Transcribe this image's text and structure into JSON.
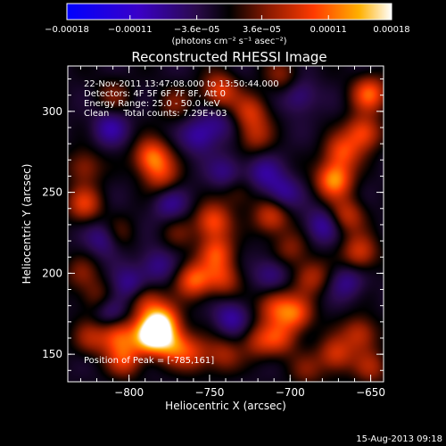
{
  "chart_data": {
    "type": "heatmap",
    "title": "Reconstructed RHESSI Image",
    "xlabel": "Heliocentric X (arcsec)",
    "ylabel": "Heliocentric Y (arcsec)",
    "xlim": [
      -838,
      -642
    ],
    "ylim": [
      133,
      328
    ],
    "x_ticks": [
      -800,
      -750,
      -700,
      -650
    ],
    "x_tick_labels": [
      "−800",
      "−750",
      "−700",
      "−650"
    ],
    "y_ticks": [
      150,
      200,
      250,
      300
    ],
    "y_tick_labels": [
      "150",
      "200",
      "250",
      "300"
    ],
    "colorbar": {
      "min": -0.00018,
      "max": 0.00018,
      "ticks": [
        -0.00018,
        -0.00011,
        -3.6e-05,
        3.6e-05,
        0.00011,
        0.00018
      ],
      "tick_labels": [
        "−0.00018",
        "−0.00011",
        "−3.6e−05",
        "3.6e−05",
        "0.00011",
        "0.00018"
      ],
      "unit_label": "(photons cm⁻² s⁻¹ asec⁻²)"
    },
    "annotations": [
      "22-Nov-2011 13:47:08.000 to 13:50:44.000",
      "Detectors: 4F 5F 6F 7F 8F, Att 0",
      "Energy Range: 25.0 - 50.0 keV",
      "Clean     Total counts: 7.29E+03"
    ],
    "peak_label": "Position of Peak = [-785,161]",
    "peak_position": [
      -785,
      161
    ],
    "sources": [
      {
        "x": -787,
        "y": 161,
        "v": 1.0
      },
      {
        "x": -780,
        "y": 170,
        "v": 0.9
      },
      {
        "x": -773,
        "y": 156,
        "v": 0.6
      },
      {
        "x": -790,
        "y": 183,
        "v": 0.45
      },
      {
        "x": -807,
        "y": 162,
        "v": 0.6
      },
      {
        "x": -803,
        "y": 147,
        "v": 0.5
      },
      {
        "x": -824,
        "y": 160,
        "v": 0.35
      },
      {
        "x": -760,
        "y": 196,
        "v": 0.65
      },
      {
        "x": -742,
        "y": 197,
        "v": 0.45
      },
      {
        "x": -746,
        "y": 213,
        "v": 0.55
      },
      {
        "x": -748,
        "y": 232,
        "v": 0.6
      },
      {
        "x": -786,
        "y": 272,
        "v": 0.7
      },
      {
        "x": -780,
        "y": 260,
        "v": 0.4
      },
      {
        "x": -828,
        "y": 243,
        "v": 0.5
      },
      {
        "x": -828,
        "y": 266,
        "v": 0.35
      },
      {
        "x": -808,
        "y": 225,
        "v": 0.3
      },
      {
        "x": -744,
        "y": 313,
        "v": 0.55
      },
      {
        "x": -725,
        "y": 300,
        "v": 0.45
      },
      {
        "x": -722,
        "y": 285,
        "v": 0.35
      },
      {
        "x": -712,
        "y": 235,
        "v": 0.5
      },
      {
        "x": -700,
        "y": 215,
        "v": 0.3
      },
      {
        "x": -697,
        "y": 175,
        "v": 0.6
      },
      {
        "x": -710,
        "y": 180,
        "v": 0.5
      },
      {
        "x": -707,
        "y": 160,
        "v": 0.45
      },
      {
        "x": -720,
        "y": 158,
        "v": 0.35
      },
      {
        "x": -687,
        "y": 198,
        "v": 0.4
      },
      {
        "x": -673,
        "y": 258,
        "v": 0.8
      },
      {
        "x": -668,
        "y": 275,
        "v": 0.55
      },
      {
        "x": -655,
        "y": 287,
        "v": 0.6
      },
      {
        "x": -651,
        "y": 311,
        "v": 0.65
      },
      {
        "x": -665,
        "y": 236,
        "v": 0.45
      },
      {
        "x": -657,
        "y": 213,
        "v": 0.5
      },
      {
        "x": -672,
        "y": 150,
        "v": 0.5
      },
      {
        "x": -657,
        "y": 163,
        "v": 0.45
      },
      {
        "x": -650,
        "y": 142,
        "v": 0.35
      },
      {
        "x": -760,
        "y": 150,
        "v": 0.4
      },
      {
        "x": -742,
        "y": 150,
        "v": 0.35
      },
      {
        "x": -810,
        "y": 310,
        "v": 0.25
      },
      {
        "x": -772,
        "y": 305,
        "v": 0.25
      },
      {
        "x": -705,
        "y": 322,
        "v": 0.3
      },
      {
        "x": -830,
        "y": 200,
        "v": 0.25
      },
      {
        "x": -820,
        "y": 185,
        "v": 0.3
      },
      {
        "x": -733,
        "y": 250,
        "v": 0.25
      },
      {
        "x": -690,
        "y": 140,
        "v": 0.25
      },
      {
        "x": -770,
        "y": 225,
        "v": 0.2
      },
      {
        "x": -812,
        "y": 290,
        "v": -0.35
      },
      {
        "x": -815,
        "y": 222,
        "v": -0.4
      },
      {
        "x": -800,
        "y": 193,
        "v": -0.35
      },
      {
        "x": -812,
        "y": 177,
        "v": -0.35
      },
      {
        "x": -775,
        "y": 243,
        "v": -0.3
      },
      {
        "x": -757,
        "y": 285,
        "v": -0.35
      },
      {
        "x": -740,
        "y": 262,
        "v": -0.3
      },
      {
        "x": -717,
        "y": 262,
        "v": -0.3
      },
      {
        "x": -705,
        "y": 250,
        "v": -0.35
      },
      {
        "x": -695,
        "y": 310,
        "v": -0.3
      },
      {
        "x": -737,
        "y": 173,
        "v": -0.35
      },
      {
        "x": -783,
        "y": 205,
        "v": -0.3
      },
      {
        "x": -680,
        "y": 230,
        "v": -0.35
      },
      {
        "x": -712,
        "y": 200,
        "v": -0.3
      },
      {
        "x": -745,
        "y": 293,
        "v": -0.25
      },
      {
        "x": -665,
        "y": 195,
        "v": -0.3
      }
    ]
  },
  "footer": {
    "timestamp": "15-Aug-2013 09:18"
  }
}
